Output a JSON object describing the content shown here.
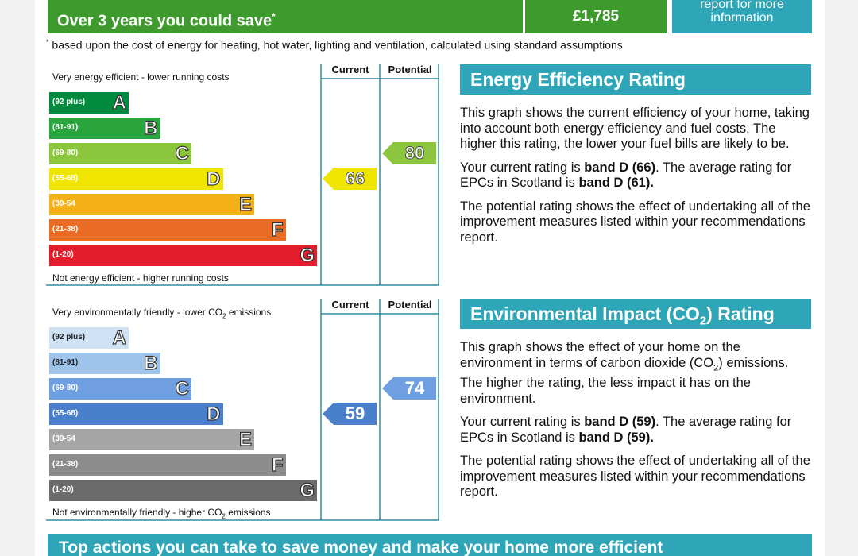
{
  "savings": {
    "label": "Over 3 years you could save",
    "asterisk": "*",
    "amount": "£1,785",
    "report_line1": "report for more",
    "report_line2": "information",
    "footnote_mark": "*",
    "footnote": "based upon the cost of energy for heating, hot water, lighting and ventilation, calculated using standard assumptions"
  },
  "energy_chart": {
    "top_caption": "Very energy efficient - lower running costs",
    "bottom_caption": "Not energy efficient - higher running costs",
    "col_current": "Current",
    "col_potential": "Potential",
    "current_value": "66",
    "potential_value": "80"
  },
  "environment_chart": {
    "top_caption_pre": "Very environmentally friendly - lower CO",
    "top_caption_sub": "2",
    "top_caption_post": " emissions",
    "bottom_caption_pre": "Not environmentally friendly - higher CO",
    "bottom_caption_sub": "2",
    "bottom_caption_post": " emissions",
    "col_current": "Current",
    "col_potential": "Potential",
    "current_value": "59",
    "potential_value": "74"
  },
  "chart_data": [
    {
      "type": "bar",
      "categories": [
        "A",
        "B",
        "C",
        "D",
        "E",
        "F",
        "G"
      ],
      "ranges": [
        "(92 plus)",
        "(81-91)",
        "(69-80)",
        "(55-68)",
        "(39-54",
        "(21-38)",
        "(1-20)"
      ],
      "colors": [
        "#008a3e",
        "#2aa43c",
        "#8cc63f",
        "#f0e500",
        "#f3b017",
        "#ea6b23",
        "#e41d2d"
      ],
      "current": 66,
      "potential": 80,
      "current_band": "D",
      "potential_band": "C",
      "current_color": "#f0e500",
      "potential_color": "#8cc63f"
    },
    {
      "type": "bar",
      "categories": [
        "A",
        "B",
        "C",
        "D",
        "E",
        "F",
        "G"
      ],
      "ranges": [
        "(92 plus)",
        "(81-91)",
        "(69-80)",
        "(55-68)",
        "(39-54",
        "(21-38)",
        "(1-20)"
      ],
      "colors": [
        "#cfe2f5",
        "#9fc4ec",
        "#6f9fe0",
        "#4a7fcc",
        "#a5a5a5",
        "#8c8c8c",
        "#6b6b6b"
      ],
      "current": 59,
      "potential": 74,
      "current_band": "D",
      "potential_band": "C",
      "current_color": "#4a7fcc",
      "potential_color": "#6f9fe0"
    }
  ],
  "energy_info": {
    "heading": "Energy Efficiency Rating",
    "p1": "This graph shows the current efficiency of your home, taking into account both energy efficiency and fuel costs. The higher this rating, the lower your fuel bills are likely to be.",
    "p2_pre": "Your current rating is ",
    "p2_bold1": "band D (66)",
    "p2_mid": ". The average rating for EPCs in Scotland is ",
    "p2_bold2": "band D (61).",
    "p3": "The potential rating shows the effect of undertaking all of the improvement measures listed within your recommendations report."
  },
  "environment_info": {
    "heading_pre": "Environmental Impact (CO",
    "heading_sub": "2",
    "heading_post": ") Rating",
    "p1_pre": "This graph shows the effect of your home on the environment in terms of carbon dioxide (CO",
    "p1_sub": "2",
    "p1_post": ") emissions. The higher the rating, the less impact it has on the environment.",
    "p2_pre": "Your current rating is ",
    "p2_bold1": "band D (59)",
    "p2_mid": ". The average rating for EPCs in Scotland is ",
    "p2_bold2": "band D (59).",
    "p3": "The potential rating shows the effect of undertaking all of the improvement measures listed within your recommendations report."
  },
  "bottom": {
    "title": "Top actions you can take to save money and make your home more efficient"
  }
}
